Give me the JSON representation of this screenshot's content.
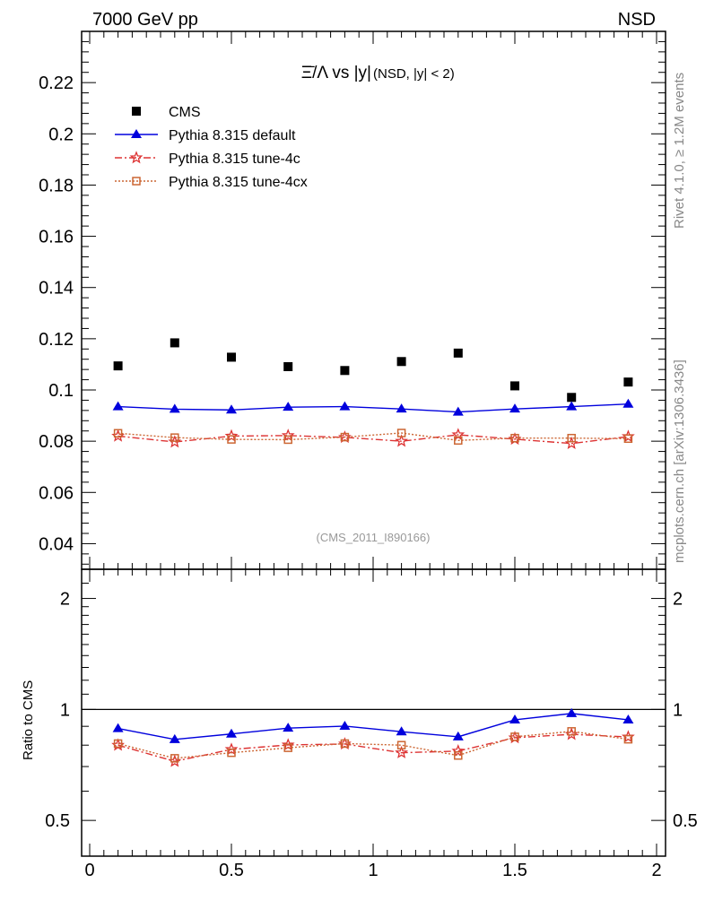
{
  "header": {
    "left": "7000 GeV pp",
    "right": "NSD"
  },
  "side_text": {
    "rivet": "Rivet 4.1.0, ≥ 1.2M events",
    "mcplots": "mcplots.cern.ch [arXiv:1306.3436]"
  },
  "chart_data": {
    "type": "scatter",
    "title_main": "Ξ̄/Λ vs |y|",
    "title_sub": "(NSD, |y| < 2)",
    "analysis_label": "(CMS_2011_I890166)",
    "xlabel": "",
    "ylabel": "",
    "xlim": [
      0,
      2
    ],
    "ylim": [
      0.03,
      0.24
    ],
    "x_ticks": [
      "0",
      "0.5",
      "1",
      "1.5",
      "2"
    ],
    "y_ticks": [
      "0.04",
      "0.06",
      "0.08",
      "0.1",
      "0.12",
      "0.14",
      "0.16",
      "0.18",
      "0.2",
      "0.22"
    ],
    "x": [
      0.1,
      0.3,
      0.5,
      0.7,
      0.9,
      1.1,
      1.3,
      1.5,
      1.7,
      1.9
    ],
    "series": [
      {
        "name": "CMS",
        "color": "#000000",
        "marker": "square",
        "line": "none",
        "values": [
          0.1094,
          0.1184,
          0.1128,
          0.1091,
          0.1076,
          0.1111,
          0.1144,
          0.1016,
          0.0971,
          0.1031
        ]
      },
      {
        "name": "Pythia 8.315 default",
        "color": "#0000dd",
        "marker": "triangle",
        "line": "solid",
        "values": [
          0.0935,
          0.0925,
          0.0922,
          0.0933,
          0.0935,
          0.0926,
          0.0914,
          0.0926,
          0.0935,
          0.0945
        ]
      },
      {
        "name": "Pythia 8.315 tune-4c",
        "color": "#dd3333",
        "marker": "star",
        "line": "dashdot",
        "values": [
          0.082,
          0.0797,
          0.082,
          0.0822,
          0.0815,
          0.08,
          0.0825,
          0.0808,
          0.0791,
          0.0818
        ]
      },
      {
        "name": "Pythia 8.315 tune-4cx",
        "color": "#cc6633",
        "marker": "open-square",
        "line": "dotted",
        "values": [
          0.0831,
          0.0814,
          0.0807,
          0.0806,
          0.0816,
          0.0832,
          0.0803,
          0.0812,
          0.0812,
          0.081
        ]
      }
    ],
    "ratio": {
      "ylabel": "Ratio to CMS",
      "ylim": [
        0.4,
        2.4
      ],
      "y_ticks": [
        "0.5",
        "1",
        "2"
      ],
      "series": [
        {
          "name": "Pythia 8.315 default",
          "values": [
            0.888,
            0.829,
            0.858,
            0.89,
            0.901,
            0.87,
            0.843,
            0.937,
            0.975,
            0.937
          ]
        },
        {
          "name": "Pythia 8.315 tune-4c",
          "values": [
            0.8,
            0.723,
            0.779,
            0.801,
            0.806,
            0.763,
            0.771,
            0.838,
            0.856,
            0.842
          ]
        },
        {
          "name": "Pythia 8.315 tune-4cx",
          "values": [
            0.808,
            0.737,
            0.763,
            0.787,
            0.808,
            0.8,
            0.75,
            0.843,
            0.872,
            0.83
          ]
        }
      ]
    }
  }
}
